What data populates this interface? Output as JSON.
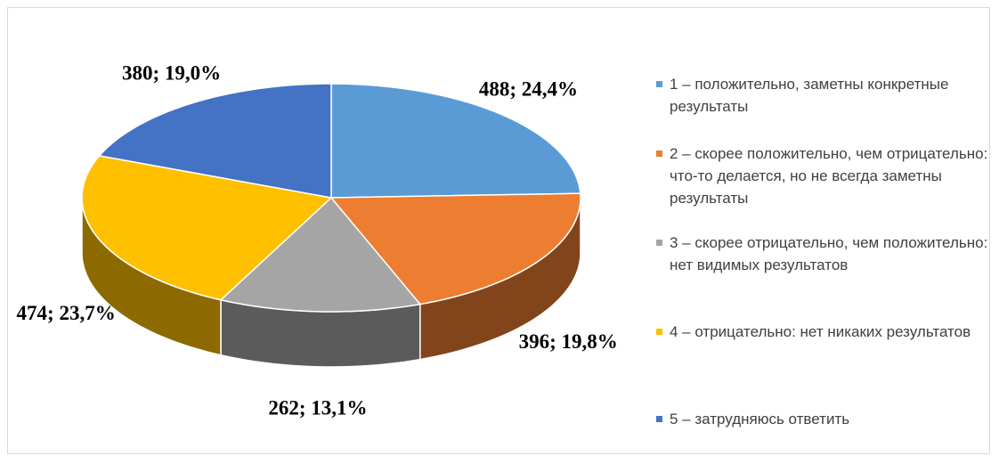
{
  "chart_data": {
    "type": "pie3d",
    "categories": [
      "1 – положительно, заметны конкретные результаты",
      "2 – скорее положительно, чем отрицательно: что-то делается, но не всегда заметны результаты",
      "3 – скорее отрицательно, чем положительно: нет видимых результатов",
      "4 – отрицательно: нет никаких результатов",
      "5 – затрудняюсь ответить"
    ],
    "values": [
      488,
      396,
      262,
      474,
      380
    ],
    "value_labels": [
      "488; 24,4%",
      "396; 19,8%",
      "262; 13,1%",
      "474; 23,7%",
      "380; 19,0%"
    ],
    "colors": [
      "#5b9bd5",
      "#ed7d31",
      "#a5a5a5",
      "#ffc000",
      "#4472c4"
    ],
    "legend": "right"
  }
}
